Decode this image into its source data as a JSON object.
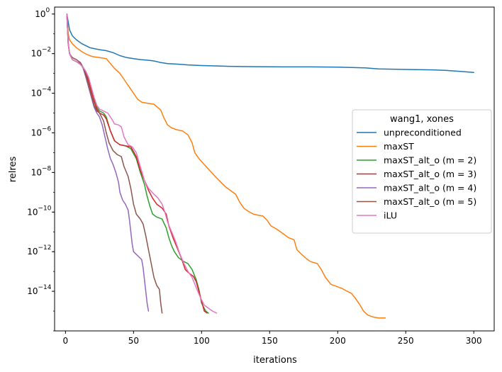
{
  "chart_data": {
    "type": "line",
    "xlabel": "iterations",
    "ylabel": "relres",
    "xlim": [
      -8,
      315
    ],
    "ylim_log10": [
      -16,
      0.35
    ],
    "yscale": "log",
    "x_ticks": [
      0,
      50,
      100,
      150,
      200,
      250,
      300
    ],
    "y_ticks": [
      {
        "exp": 0,
        "label": "0"
      },
      {
        "exp": -2,
        "label": "−2"
      },
      {
        "exp": -4,
        "label": "−4"
      },
      {
        "exp": -6,
        "label": "−6"
      },
      {
        "exp": -8,
        "label": "−8"
      },
      {
        "exp": -10,
        "label": "−10"
      },
      {
        "exp": -12,
        "label": "−12"
      },
      {
        "exp": -14,
        "label": "−14"
      }
    ],
    "tick_base": "10",
    "grid": false,
    "legend": {
      "title": "wang1, xones",
      "placement": "center-right"
    },
    "series": [
      {
        "name": "unpreconditioned",
        "color": "#1f77b4",
        "points": [
          [
            1,
            0
          ],
          [
            3,
            -0.8
          ],
          [
            5,
            -1.1
          ],
          [
            8,
            -1.3
          ],
          [
            12,
            -1.5
          ],
          [
            18,
            -1.7
          ],
          [
            25,
            -1.8
          ],
          [
            30,
            -1.85
          ],
          [
            35,
            -1.95
          ],
          [
            40,
            -2.1
          ],
          [
            45,
            -2.2
          ],
          [
            50,
            -2.25
          ],
          [
            55,
            -2.3
          ],
          [
            60,
            -2.33
          ],
          [
            65,
            -2.37
          ],
          [
            70,
            -2.45
          ],
          [
            75,
            -2.5
          ],
          [
            80,
            -2.52
          ],
          [
            90,
            -2.57
          ],
          [
            100,
            -2.6
          ],
          [
            110,
            -2.62
          ],
          [
            120,
            -2.64
          ],
          [
            140,
            -2.66
          ],
          [
            160,
            -2.67
          ],
          [
            180,
            -2.67
          ],
          [
            200,
            -2.68
          ],
          [
            210,
            -2.7
          ],
          [
            220,
            -2.72
          ],
          [
            230,
            -2.77
          ],
          [
            250,
            -2.8
          ],
          [
            270,
            -2.82
          ],
          [
            280,
            -2.85
          ],
          [
            290,
            -2.9
          ],
          [
            300,
            -2.95
          ]
        ]
      },
      {
        "name": "maxST",
        "color": "#ff7f0e",
        "points": [
          [
            1,
            0
          ],
          [
            2,
            -1
          ],
          [
            3,
            -1.3
          ],
          [
            5,
            -1.5
          ],
          [
            8,
            -1.7
          ],
          [
            12,
            -1.9
          ],
          [
            16,
            -2.05
          ],
          [
            20,
            -2.15
          ],
          [
            25,
            -2.2
          ],
          [
            30,
            -2.25
          ],
          [
            33,
            -2.5
          ],
          [
            36,
            -2.75
          ],
          [
            40,
            -3.0
          ],
          [
            43,
            -3.3
          ],
          [
            47,
            -3.7
          ],
          [
            50,
            -4.0
          ],
          [
            53,
            -4.3
          ],
          [
            56,
            -4.45
          ],
          [
            60,
            -4.5
          ],
          [
            65,
            -4.55
          ],
          [
            70,
            -4.85
          ],
          [
            72,
            -5.2
          ],
          [
            75,
            -5.6
          ],
          [
            78,
            -5.75
          ],
          [
            82,
            -5.85
          ],
          [
            86,
            -5.9
          ],
          [
            90,
            -6.1
          ],
          [
            93,
            -6.5
          ],
          [
            95,
            -7.0
          ],
          [
            98,
            -7.3
          ],
          [
            102,
            -7.6
          ],
          [
            106,
            -7.9
          ],
          [
            110,
            -8.2
          ],
          [
            115,
            -8.55
          ],
          [
            118,
            -8.75
          ],
          [
            120,
            -8.85
          ],
          [
            125,
            -9.1
          ],
          [
            128,
            -9.5
          ],
          [
            131,
            -9.8
          ],
          [
            134,
            -9.95
          ],
          [
            138,
            -10.1
          ],
          [
            141,
            -10.15
          ],
          [
            145,
            -10.2
          ],
          [
            148,
            -10.4
          ],
          [
            151,
            -10.7
          ],
          [
            155,
            -10.85
          ],
          [
            160,
            -11.1
          ],
          [
            164,
            -11.3
          ],
          [
            168,
            -11.4
          ],
          [
            170,
            -11.9
          ],
          [
            173,
            -12.1
          ],
          [
            177,
            -12.35
          ],
          [
            180,
            -12.5
          ],
          [
            185,
            -12.6
          ],
          [
            188,
            -12.9
          ],
          [
            191,
            -13.3
          ],
          [
            195,
            -13.65
          ],
          [
            199,
            -13.75
          ],
          [
            203,
            -13.85
          ],
          [
            207,
            -14.0
          ],
          [
            210,
            -14.1
          ],
          [
            213,
            -14.35
          ],
          [
            216,
            -14.65
          ],
          [
            219,
            -15.0
          ],
          [
            222,
            -15.2
          ],
          [
            226,
            -15.3
          ],
          [
            230,
            -15.35
          ],
          [
            235,
            -15.35
          ]
        ]
      },
      {
        "name": "maxST_alt_o (m = 2)",
        "color": "#2ca02c",
        "points": [
          [
            1,
            0
          ],
          [
            2,
            -1.5
          ],
          [
            3,
            -2
          ],
          [
            5,
            -2.3
          ],
          [
            8,
            -2.4
          ],
          [
            11,
            -2.55
          ],
          [
            13,
            -2.7
          ],
          [
            15,
            -2.9
          ],
          [
            17,
            -3.3
          ],
          [
            19,
            -3.8
          ],
          [
            21,
            -4.3
          ],
          [
            23,
            -4.7
          ],
          [
            25,
            -4.9
          ],
          [
            28,
            -5.0
          ],
          [
            30,
            -5.2
          ],
          [
            33,
            -5.9
          ],
          [
            36,
            -6.4
          ],
          [
            40,
            -6.6
          ],
          [
            44,
            -6.65
          ],
          [
            48,
            -6.8
          ],
          [
            52,
            -7.3
          ],
          [
            55,
            -8.0
          ],
          [
            58,
            -8.6
          ],
          [
            60,
            -9.2
          ],
          [
            62,
            -9.7
          ],
          [
            64,
            -10.1
          ],
          [
            67,
            -10.25
          ],
          [
            71,
            -10.35
          ],
          [
            74,
            -10.8
          ],
          [
            76,
            -11.3
          ],
          [
            78,
            -11.7
          ],
          [
            80,
            -12.0
          ],
          [
            83,
            -12.3
          ],
          [
            87,
            -12.5
          ],
          [
            90,
            -12.6
          ],
          [
            93,
            -12.9
          ],
          [
            96,
            -13.4
          ],
          [
            98,
            -13.9
          ],
          [
            100,
            -14.6
          ],
          [
            103,
            -15.0
          ],
          [
            105,
            -15.1
          ]
        ]
      },
      {
        "name": "maxST_alt_o (m = 3)",
        "color": "#d62728",
        "points": [
          [
            1,
            0
          ],
          [
            2,
            -1.5
          ],
          [
            3,
            -2
          ],
          [
            5,
            -2.3
          ],
          [
            8,
            -2.4
          ],
          [
            11,
            -2.5
          ],
          [
            13,
            -2.7
          ],
          [
            15,
            -3
          ],
          [
            17,
            -3.4
          ],
          [
            19,
            -3.9
          ],
          [
            21,
            -4.4
          ],
          [
            23,
            -4.8
          ],
          [
            25,
            -5.0
          ],
          [
            28,
            -5.1
          ],
          [
            30,
            -5.3
          ],
          [
            33,
            -5.9
          ],
          [
            36,
            -6.4
          ],
          [
            40,
            -6.6
          ],
          [
            44,
            -6.65
          ],
          [
            48,
            -6.7
          ],
          [
            52,
            -7.2
          ],
          [
            55,
            -7.9
          ],
          [
            58,
            -8.4
          ],
          [
            61,
            -8.9
          ],
          [
            64,
            -9.3
          ],
          [
            67,
            -9.6
          ],
          [
            71,
            -9.8
          ],
          [
            74,
            -10.1
          ],
          [
            76,
            -10.7
          ],
          [
            79,
            -11.3
          ],
          [
            82,
            -11.8
          ],
          [
            85,
            -12.3
          ],
          [
            88,
            -12.9
          ],
          [
            91,
            -13.1
          ],
          [
            94,
            -13.25
          ],
          [
            96,
            -13.5
          ],
          [
            98,
            -14.0
          ],
          [
            100,
            -14.5
          ],
          [
            102,
            -15.0
          ],
          [
            104,
            -15.1
          ]
        ]
      },
      {
        "name": "maxST_alt_o (m = 4)",
        "color": "#9467bd",
        "points": [
          [
            1,
            0
          ],
          [
            2,
            -1.4
          ],
          [
            3,
            -2
          ],
          [
            5,
            -2.3
          ],
          [
            8,
            -2.4
          ],
          [
            11,
            -2.5
          ],
          [
            13,
            -2.75
          ],
          [
            15,
            -3.2
          ],
          [
            17,
            -3.7
          ],
          [
            19,
            -4.2
          ],
          [
            21,
            -4.7
          ],
          [
            23,
            -5.0
          ],
          [
            25,
            -5.2
          ],
          [
            27,
            -5.6
          ],
          [
            29,
            -6.2
          ],
          [
            31,
            -6.8
          ],
          [
            33,
            -7.3
          ],
          [
            35,
            -7.6
          ],
          [
            37,
            -8.0
          ],
          [
            39,
            -8.5
          ],
          [
            40,
            -9.0
          ],
          [
            42,
            -9.4
          ],
          [
            44,
            -9.6
          ],
          [
            46,
            -9.9
          ],
          [
            47,
            -10.4
          ],
          [
            48,
            -11.0
          ],
          [
            49,
            -11.6
          ],
          [
            50,
            -12.0
          ],
          [
            53,
            -12.2
          ],
          [
            56,
            -12.4
          ],
          [
            57,
            -12.8
          ],
          [
            58,
            -13.4
          ],
          [
            59,
            -14.0
          ],
          [
            60,
            -14.6
          ],
          [
            61,
            -15.0
          ]
        ]
      },
      {
        "name": "maxST_alt_o (m = 5)",
        "color": "#8c564b",
        "points": [
          [
            1,
            0
          ],
          [
            2,
            -1.5
          ],
          [
            3,
            -2
          ],
          [
            5,
            -2.2
          ],
          [
            8,
            -2.3
          ],
          [
            11,
            -2.45
          ],
          [
            13,
            -2.7
          ],
          [
            15,
            -3.1
          ],
          [
            17,
            -3.6
          ],
          [
            19,
            -4.1
          ],
          [
            21,
            -4.6
          ],
          [
            23,
            -4.9
          ],
          [
            25,
            -5.0
          ],
          [
            28,
            -5.4
          ],
          [
            30,
            -6.0
          ],
          [
            32,
            -6.5
          ],
          [
            35,
            -6.9
          ],
          [
            38,
            -7.1
          ],
          [
            41,
            -7.2
          ],
          [
            43,
            -7.7
          ],
          [
            46,
            -8.2
          ],
          [
            48,
            -8.8
          ],
          [
            50,
            -9.6
          ],
          [
            52,
            -10.1
          ],
          [
            55,
            -10.35
          ],
          [
            57,
            -10.6
          ],
          [
            59,
            -11.2
          ],
          [
            61,
            -11.9
          ],
          [
            63,
            -12.6
          ],
          [
            65,
            -13.3
          ],
          [
            67,
            -13.7
          ],
          [
            69,
            -13.9
          ],
          [
            70,
            -14.6
          ],
          [
            71,
            -15.1
          ]
        ]
      },
      {
        "name": "iLU",
        "color": "#e377c2",
        "points": [
          [
            1,
            0
          ],
          [
            2,
            -1.5
          ],
          [
            3,
            -2
          ],
          [
            5,
            -2.3
          ],
          [
            8,
            -2.4
          ],
          [
            11,
            -2.55
          ],
          [
            13,
            -2.7
          ],
          [
            15,
            -2.9
          ],
          [
            17,
            -3.2
          ],
          [
            19,
            -3.7
          ],
          [
            21,
            -4.2
          ],
          [
            23,
            -4.6
          ],
          [
            25,
            -4.8
          ],
          [
            28,
            -4.9
          ],
          [
            31,
            -5.0
          ],
          [
            34,
            -5.3
          ],
          [
            36,
            -5.55
          ],
          [
            39,
            -5.6
          ],
          [
            41,
            -5.7
          ],
          [
            43,
            -6.2
          ],
          [
            46,
            -6.6
          ],
          [
            49,
            -6.7
          ],
          [
            52,
            -7.0
          ],
          [
            55,
            -7.7
          ],
          [
            58,
            -8.4
          ],
          [
            61,
            -8.8
          ],
          [
            65,
            -9.1
          ],
          [
            68,
            -9.3
          ],
          [
            71,
            -9.6
          ],
          [
            73,
            -10.0
          ],
          [
            75,
            -10.5
          ],
          [
            78,
            -11.0
          ],
          [
            81,
            -11.5
          ],
          [
            84,
            -12.1
          ],
          [
            87,
            -12.6
          ],
          [
            90,
            -13.0
          ],
          [
            93,
            -13.3
          ],
          [
            96,
            -13.8
          ],
          [
            99,
            -14.3
          ],
          [
            102,
            -14.7
          ],
          [
            105,
            -14.85
          ],
          [
            108,
            -15.0
          ],
          [
            111,
            -15.1
          ]
        ]
      }
    ]
  }
}
